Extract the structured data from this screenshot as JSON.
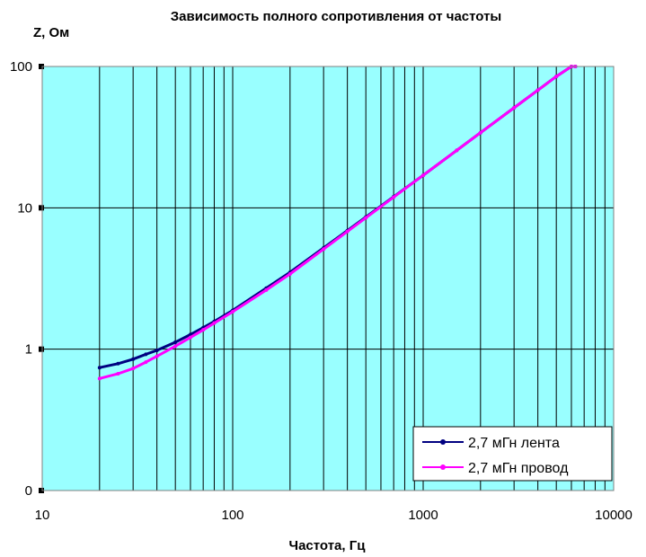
{
  "chart_data": {
    "type": "line",
    "title": "Зависимость полного сопротивления от частоты",
    "xlabel": "Частота, Гц",
    "ylabel": "Z, Ом",
    "xscale": "log",
    "yscale": "log",
    "xlim": [
      10,
      10000
    ],
    "ylim": [
      0.1,
      100
    ],
    "x_ticks": [
      {
        "value": 10,
        "label": "10"
      },
      {
        "value": 100,
        "label": "100"
      },
      {
        "value": 1000,
        "label": "1000"
      },
      {
        "value": 10000,
        "label": "10000"
      }
    ],
    "y_ticks": [
      {
        "value": 0.1,
        "label": "0"
      },
      {
        "value": 1,
        "label": "1"
      },
      {
        "value": 10,
        "label": "10"
      },
      {
        "value": 100,
        "label": "100"
      }
    ],
    "grid": true,
    "plot_background": "#99ffff",
    "legend_position": "bottom-right",
    "series": [
      {
        "name": "2,7 мГн лента",
        "color": "#000080",
        "marker": "dot",
        "x": [
          20,
          25,
          30,
          35,
          40,
          50,
          60,
          70,
          80,
          100,
          150,
          200,
          300,
          400,
          500,
          700,
          1000,
          1500,
          2000,
          3000,
          4000,
          5000,
          6000,
          6300
        ],
        "y": [
          0.74,
          0.79,
          0.85,
          0.92,
          0.98,
          1.12,
          1.27,
          1.42,
          1.57,
          1.88,
          2.7,
          3.5,
          5.2,
          6.9,
          8.6,
          12.0,
          17.0,
          25.5,
          34.0,
          51.0,
          68.0,
          85.0,
          101.0,
          106.0
        ]
      },
      {
        "name": "2,7 мГн провод",
        "color": "#ff00ff",
        "marker": "dot",
        "x": [
          20,
          25,
          30,
          35,
          40,
          50,
          60,
          70,
          80,
          100,
          150,
          200,
          300,
          400,
          500,
          700,
          1000,
          1500,
          2000,
          3000,
          4000,
          5000,
          6000,
          6300
        ],
        "y": [
          0.62,
          0.67,
          0.73,
          0.81,
          0.89,
          1.05,
          1.21,
          1.37,
          1.53,
          1.84,
          2.62,
          3.4,
          5.1,
          6.8,
          8.5,
          11.9,
          17.0,
          25.5,
          34.0,
          51.0,
          68.0,
          85.0,
          101.0,
          106.0
        ]
      }
    ]
  }
}
